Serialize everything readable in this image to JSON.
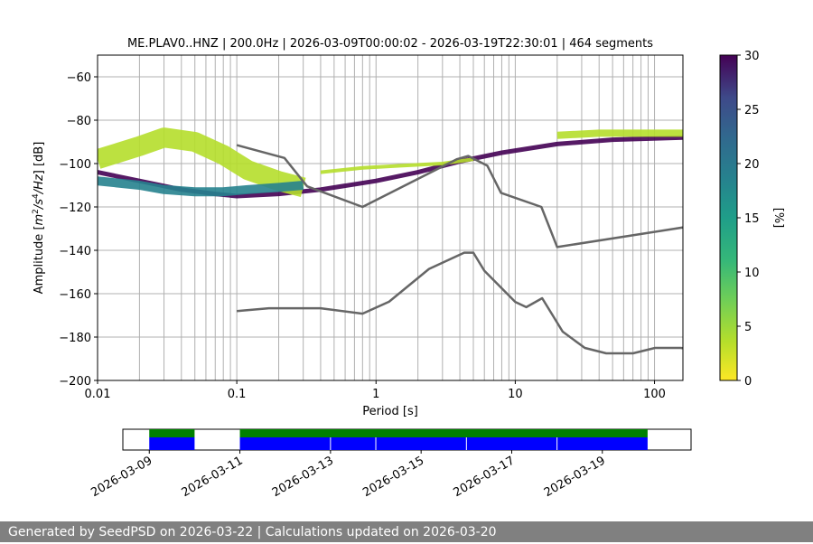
{
  "chart_data": {
    "type": "heatmap",
    "title": "ME.PLAV0..HNZ | 200.0Hz | 2026-03-09T00:00:02 - 2026-03-19T22:30:01 | 464 segments",
    "xlabel": "Period [s]",
    "ylabel_parts": [
      "Amplitude [",
      "m",
      "2",
      "/s",
      "4",
      "/Hz",
      "] [dB]"
    ],
    "x_scale": "log",
    "xlim": [
      0.01,
      160
    ],
    "ylim": [
      -200,
      -50
    ],
    "x_ticks": [
      0.01,
      0.1,
      1,
      10,
      100
    ],
    "x_tick_labels": [
      "0.01",
      "0.1",
      "1",
      "10",
      "100"
    ],
    "y_ticks": [
      -60,
      -80,
      -100,
      -120,
      -140,
      -160,
      -180,
      -200
    ],
    "y_tick_labels": [
      "−60",
      "−80",
      "−100",
      "−120",
      "−140",
      "−160",
      "−180",
      "−200"
    ],
    "grid": "vertical-minor",
    "colorbar": {
      "label": "[%]",
      "range": [
        0,
        30
      ],
      "ticks": [
        0,
        5,
        10,
        15,
        20,
        25,
        30
      ],
      "tick_labels": [
        "0",
        "5",
        "10",
        "15",
        "20",
        "25",
        "30"
      ],
      "colormap": "viridis_r"
    },
    "series": [
      {
        "name": "high noise model",
        "x": [
          0.1,
          0.22,
          0.32,
          0.8,
          3.8,
          4.6,
          6.3,
          7.9,
          15.4,
          20,
          354
        ],
        "y": [
          -91.5,
          -97.4,
          -110.5,
          -120,
          -98,
          -96.5,
          -101,
          -113.5,
          -120,
          -138.5,
          -126
        ]
      },
      {
        "name": "low noise model",
        "x": [
          0.1,
          0.17,
          0.4,
          0.8,
          1.24,
          2.4,
          4.3,
          5,
          6,
          10,
          12,
          15.6,
          21.9,
          31.6,
          45,
          70,
          101,
          154,
          328
        ],
        "y": [
          -168,
          -166.7,
          -166.7,
          -169.2,
          -163.7,
          -148.6,
          -141.1,
          -141.1,
          -149.4,
          -163.8,
          -166.2,
          -162.1,
          -177.5,
          -185,
          -187.5,
          -187.5,
          -185,
          -185,
          -187.5
        ]
      }
    ],
    "heatmap_bands": [
      {
        "x": [
          0.01,
          0.02,
          0.04,
          0.07,
          0.1,
          0.2,
          0.4,
          1,
          2,
          4,
          8,
          20,
          50,
          160
        ],
        "y": [
          -104,
          -108,
          -112,
          -114,
          -115,
          -114,
          -112,
          -108,
          -104,
          -99,
          -95,
          -91,
          -89,
          -88
        ],
        "percent": 30
      },
      {
        "x": [
          0.01,
          0.02,
          0.03,
          0.05,
          0.08,
          0.12,
          0.2,
          0.3
        ],
        "y": [
          -98,
          -92,
          -88,
          -90,
          -96,
          -103,
          -108,
          -111
        ],
        "percent": 3
      },
      {
        "x": [
          0.01,
          0.02,
          0.03,
          0.05,
          0.08,
          0.12,
          0.2,
          0.3
        ],
        "y": [
          -108,
          -110,
          -112,
          -113,
          -113,
          -112,
          -111,
          -110
        ],
        "percent": 15
      },
      {
        "x": [
          0.4,
          0.8,
          1.5,
          3,
          5
        ],
        "y": [
          -104,
          -102,
          -101,
          -100,
          -98
        ],
        "percent": 2
      },
      {
        "x": [
          20,
          40,
          80,
          160
        ],
        "y": [
          -87,
          -86,
          -86,
          -86
        ],
        "percent": 4
      }
    ],
    "availability": {
      "date_ticks": [
        "2026-03-09",
        "2026-03-11",
        "2026-03-13",
        "2026-03-15",
        "2026-03-17",
        "2026-03-19"
      ],
      "range": [
        "2026-03-08T10:00",
        "2026-03-20T23:00"
      ],
      "segments": [
        {
          "start": "2026-03-09T00:00",
          "end": "2026-03-10T00:00"
        },
        {
          "start": "2026-03-11T00:00",
          "end": "2026-03-19T23:59"
        }
      ],
      "dividers": [
        "2026-03-13T00:00",
        "2026-03-14T00:00",
        "2026-03-16T00:00",
        "2026-03-18T00:00"
      ],
      "colors": {
        "gaps": "#0000ff",
        "processed": "#008000"
      }
    }
  },
  "footer": {
    "text": "Generated by SeedPSD on 2026-03-22 | Calculations updated on 2026-03-20"
  },
  "colors": {
    "noise_model": "#666666",
    "grid": "#b0b0b0",
    "axis": "#000000",
    "footer_bg": "#808080"
  }
}
